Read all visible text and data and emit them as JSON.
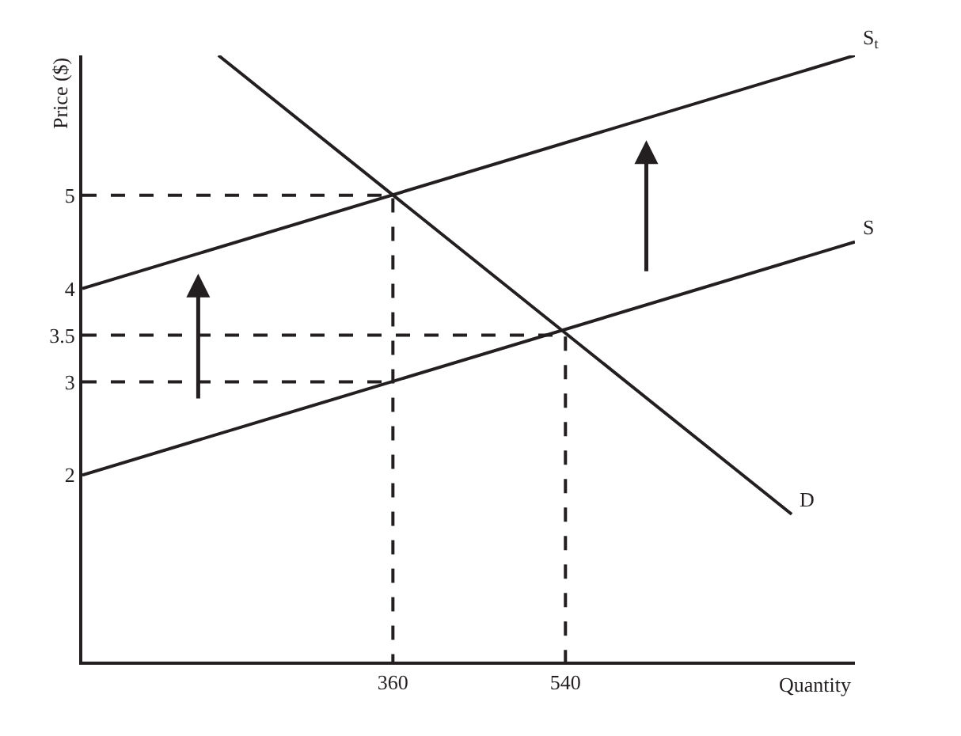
{
  "chart_data": {
    "type": "line",
    "xlabel": "Quantity",
    "ylabel": "Price ($)",
    "xlim": [
      36,
      842
    ],
    "ylim": [
      0,
      6.5
    ],
    "xticks": [
      360,
      540
    ],
    "yticks": [
      2,
      3,
      3.5,
      4,
      5
    ],
    "grid": false,
    "legend": false,
    "marker": "none",
    "series": [
      {
        "name": "S$_{t}$",
        "color": "#231f20",
        "x": [
          36,
          842
        ],
        "values": [
          4,
          6.5
        ],
        "line_style": "solid"
      },
      {
        "name": "S",
        "color": "#231f20",
        "x": [
          36,
          842
        ],
        "values": [
          2,
          4.5
        ],
        "line_style": "solid"
      },
      {
        "name": "D",
        "color": "#231f20",
        "x": [
          178,
          776
        ],
        "values": [
          6.5,
          1.58
        ],
        "line_style": "solid"
      },
      {
        "color": "#231f20",
        "x": [
          36,
          360,
          360
        ],
        "values": [
          5,
          5,
          0
        ],
        "line_style": "dashed"
      },
      {
        "color": "#231f20",
        "x": [
          36,
          540,
          540
        ],
        "values": [
          3.5,
          3.5,
          0
        ],
        "line_style": "dashed"
      },
      {
        "color": "#231f20",
        "x": [
          36,
          360
        ],
        "values": [
          3,
          3
        ],
        "line_style": "dashed"
      }
    ]
  }
}
